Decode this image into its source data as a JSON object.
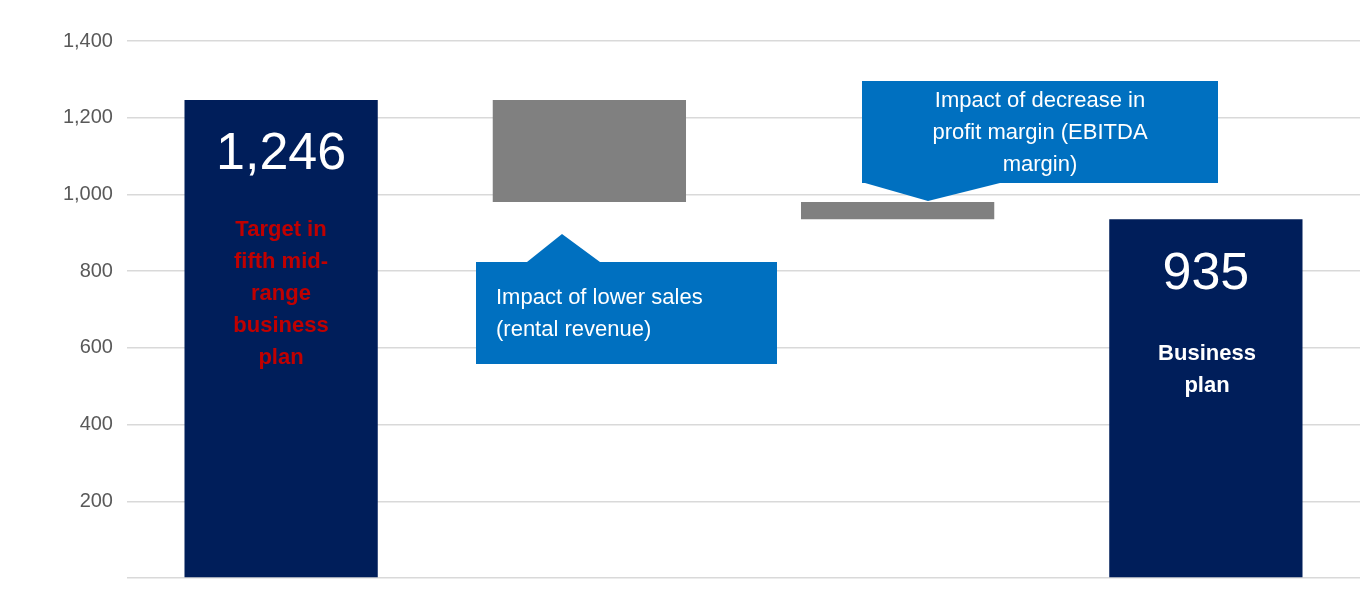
{
  "chart_data": {
    "type": "bar",
    "categories": [
      null,
      null,
      null,
      null
    ],
    "values": [
      1246,
      266,
      45,
      935
    ],
    "base": [
      0,
      980,
      935,
      0
    ],
    "colors": [
      "#001e5a",
      "#808080",
      "#808080",
      "#001e5a"
    ],
    "ylim": [
      0,
      1400
    ],
    "yticks": [
      {
        "value": 0,
        "label": null
      },
      200,
      400,
      600,
      800,
      {
        "value": 1000,
        "label": "1,000"
      },
      {
        "value": 1200,
        "label": "1,200"
      },
      {
        "value": 1400,
        "label": "1,400"
      }
    ],
    "grid": "y",
    "value_labels": [
      "1,246",
      null,
      null,
      "935"
    ],
    "annotations": [
      "Target in fifth mid-range business plan",
      "Impact of lower sales (rental revenue)",
      "Impact of decrease in profit margin (EBITDA margin)",
      "Business plan"
    ]
  }
}
